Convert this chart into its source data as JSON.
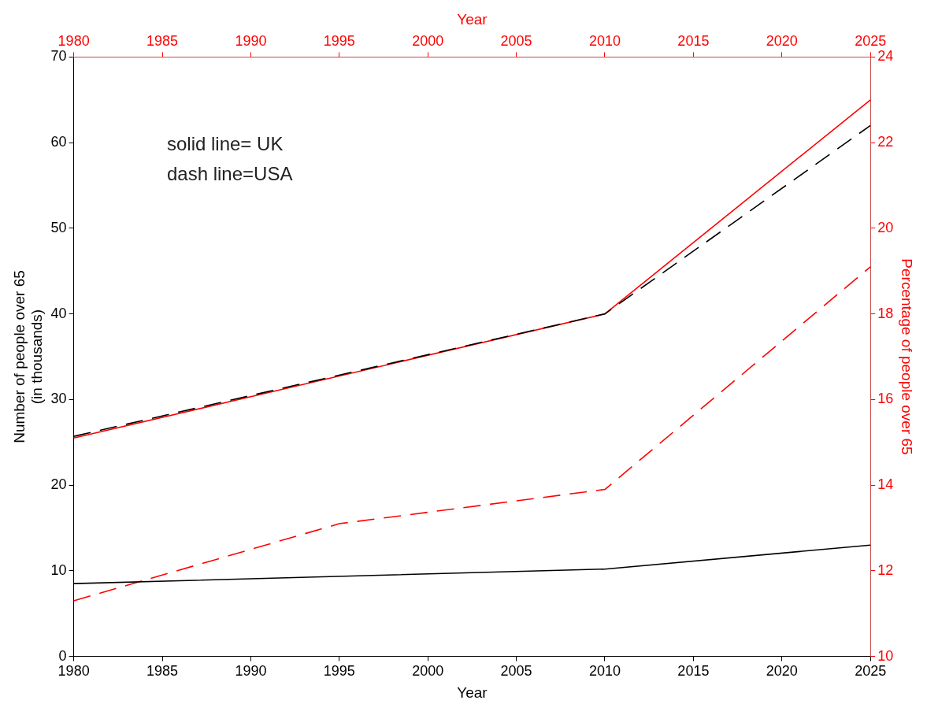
{
  "chart_data": {
    "type": "line",
    "xlabel": "Year",
    "x2label": "Year",
    "ylabel": "Number of people over 65\n(in thousands)",
    "y2label": "Percentage of people over 65",
    "xlim": [
      1980,
      2025
    ],
    "xticks": [
      1980,
      1985,
      1990,
      1995,
      2000,
      2005,
      2010,
      2015,
      2020,
      2025
    ],
    "x2lim": [
      1980,
      2025
    ],
    "x2ticks": [
      1980,
      1985,
      1990,
      1995,
      2000,
      2005,
      2010,
      2015,
      2020,
      2025
    ],
    "ylim": [
      0,
      70
    ],
    "yticks": [
      0,
      10,
      20,
      30,
      40,
      50,
      60,
      70
    ],
    "y2lim": [
      10,
      24
    ],
    "y2ticks": [
      10,
      12,
      14,
      16,
      18,
      20,
      22,
      24
    ],
    "grid": false,
    "legend": false,
    "marker": "none",
    "annotations": [
      "solid line= UK",
      "dash line=USA"
    ],
    "series": [
      {
        "color": "#000000",
        "line_style": "solid",
        "x": [
          1980,
          2010,
          2025
        ],
        "values": [
          8.5,
          10.2,
          13
        ]
      },
      {
        "color": "#000000",
        "line_style": "dashed",
        "x": [
          1980,
          2010,
          2025
        ],
        "values": [
          25.7,
          40,
          62
        ]
      },
      {
        "color": "#ff0000",
        "line_style": "solid",
        "axis": "y2",
        "x": [
          1980,
          2010,
          2025
        ],
        "values": [
          15.1,
          18,
          23
        ]
      },
      {
        "color": "#ff0000",
        "line_style": "dashed",
        "axis": "y2",
        "x": [
          1980,
          1995,
          2010,
          2025
        ],
        "values": [
          11.3,
          13.1,
          13.9,
          19.1
        ]
      }
    ]
  }
}
